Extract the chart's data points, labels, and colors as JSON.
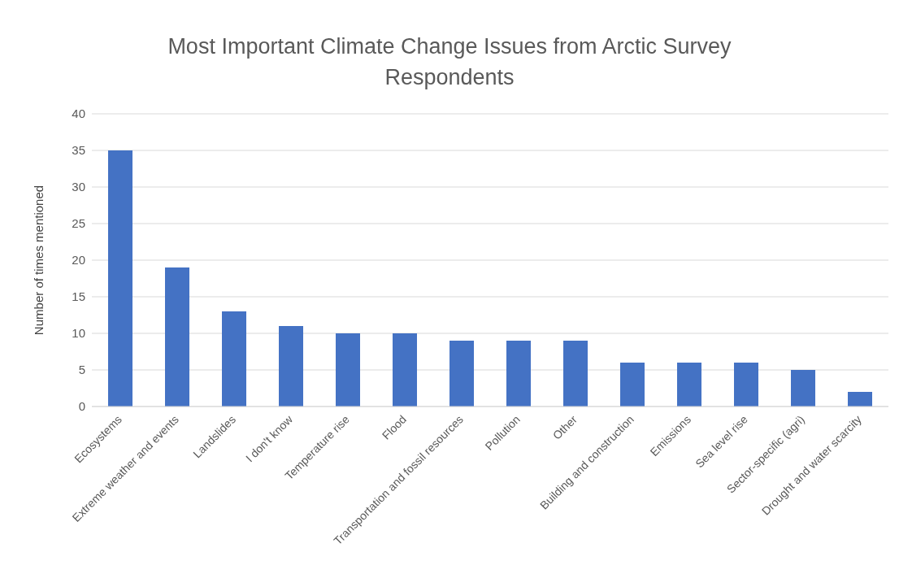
{
  "chart_data": {
    "type": "bar",
    "title": "Most Important Climate Change Issues from Arctic Survey Respondents",
    "ylabel": "Number of times mentioned",
    "categories": [
      "Ecosystems",
      "Extreme weather and events",
      "Landslides",
      "I don't know",
      "Temperature rise",
      "Flood",
      "Transportation and fossil resources",
      "Pollution",
      "Other",
      "Building and construction",
      "Emissions",
      "Sea level rise",
      "Sector-specific (agri)",
      "Drought and water scarcity"
    ],
    "values": [
      35,
      19,
      13,
      11,
      10,
      10,
      9,
      9,
      9,
      6,
      6,
      6,
      5,
      2
    ],
    "color": "#4472c4",
    "ylim": [
      0,
      40
    ],
    "yticks": [
      0,
      5,
      10,
      15,
      20,
      25,
      30,
      35,
      40
    ],
    "grid": "y"
  }
}
